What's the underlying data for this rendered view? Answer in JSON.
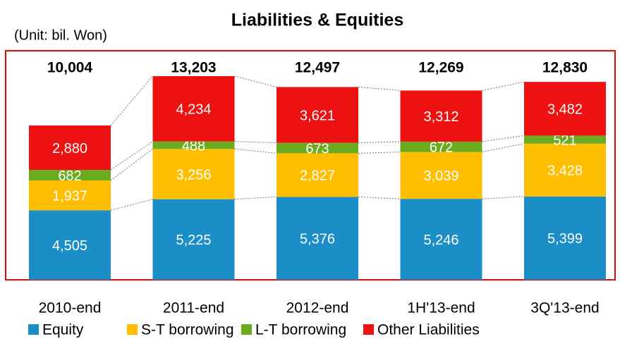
{
  "chart_data": {
    "type": "stacked_bar",
    "title": "Liabilities & Equities",
    "unit_note": "(Unit: bil. Won)",
    "categories": [
      "2010-end",
      "2011-end",
      "2012-end",
      "1H'13-end",
      "3Q'13-end"
    ],
    "series": [
      {
        "name": "Equity",
        "color": "#1b8ec8",
        "values": [
          4505,
          5225,
          5376,
          5246,
          5399
        ],
        "value_labels": [
          "4,505",
          "5,225",
          "5,376",
          "5,246",
          "5,399"
        ]
      },
      {
        "name": "S-T borrowing",
        "color": "#ffbf00",
        "values": [
          1937,
          3256,
          2827,
          3039,
          3428
        ],
        "value_labels": [
          "1,937",
          "3,256",
          "2,827",
          "3,039",
          "3,428"
        ]
      },
      {
        "name": "L-T borrowing",
        "color": "#6aab1f",
        "values": [
          682,
          488,
          673,
          672,
          521
        ],
        "value_labels": [
          "682",
          "488",
          "673",
          "672",
          "521"
        ]
      },
      {
        "name": "Other Liabilities",
        "color": "#ee1111",
        "values": [
          2880,
          4234,
          3621,
          3312,
          3482
        ],
        "value_labels": [
          "2,880",
          "4,234",
          "3,621",
          "3,312",
          "3,482"
        ]
      }
    ],
    "totals": [
      10004,
      13203,
      12497,
      12269,
      12830
    ],
    "total_labels": [
      "10,004",
      "13,203",
      "12,497",
      "12,269",
      "12,830"
    ]
  }
}
